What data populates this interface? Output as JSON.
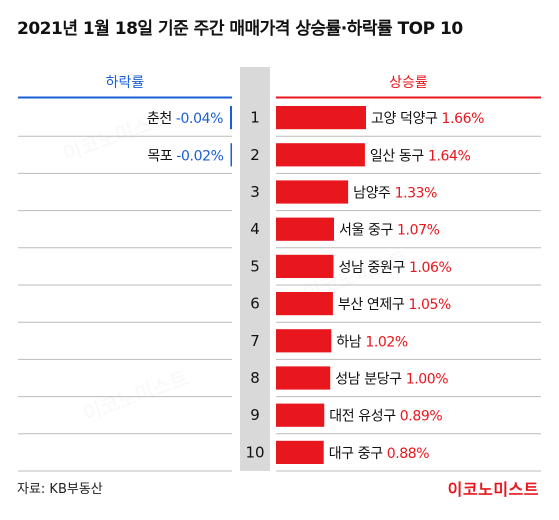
{
  "title": "2021년 1월 18일 기준 주간 매매가격 상승률·하락률 TOP 10",
  "source": "자료: KB부동산",
  "brand": "이코노미스트",
  "colors": {
    "accent_red": "#e8161d",
    "accent_blue": "#1a5fd6",
    "rank_bg": "#d9d9d9",
    "divider": "#bbbbbb"
  },
  "chart_data": {
    "type": "bar",
    "headers": {
      "decline": "하락률",
      "rise": "상승률"
    },
    "ranks": [
      "1",
      "2",
      "3",
      "4",
      "5",
      "6",
      "7",
      "8",
      "9",
      "10"
    ],
    "rise": [
      {
        "name": "고양 덕양구",
        "label": "1.66%",
        "value": 1.66
      },
      {
        "name": "일산 동구",
        "label": "1.64%",
        "value": 1.64
      },
      {
        "name": "남양주",
        "label": "1.33%",
        "value": 1.33
      },
      {
        "name": "서울 중구",
        "label": "1.07%",
        "value": 1.07
      },
      {
        "name": "성남 중원구",
        "label": "1.06%",
        "value": 1.06
      },
      {
        "name": "부산 연제구",
        "label": "1.05%",
        "value": 1.05
      },
      {
        "name": "하남",
        "label": "1.02%",
        "value": 1.02
      },
      {
        "name": "성남 분당구",
        "label": "1.00%",
        "value": 1.0
      },
      {
        "name": "대전 유성구",
        "label": "0.89%",
        "value": 0.89
      },
      {
        "name": "대구 중구",
        "label": "0.88%",
        "value": 0.88
      }
    ],
    "decline": [
      {
        "name": "춘천",
        "label": "-0.04%",
        "value": -0.04
      },
      {
        "name": "목포",
        "label": "-0.02%",
        "value": -0.02
      }
    ]
  }
}
